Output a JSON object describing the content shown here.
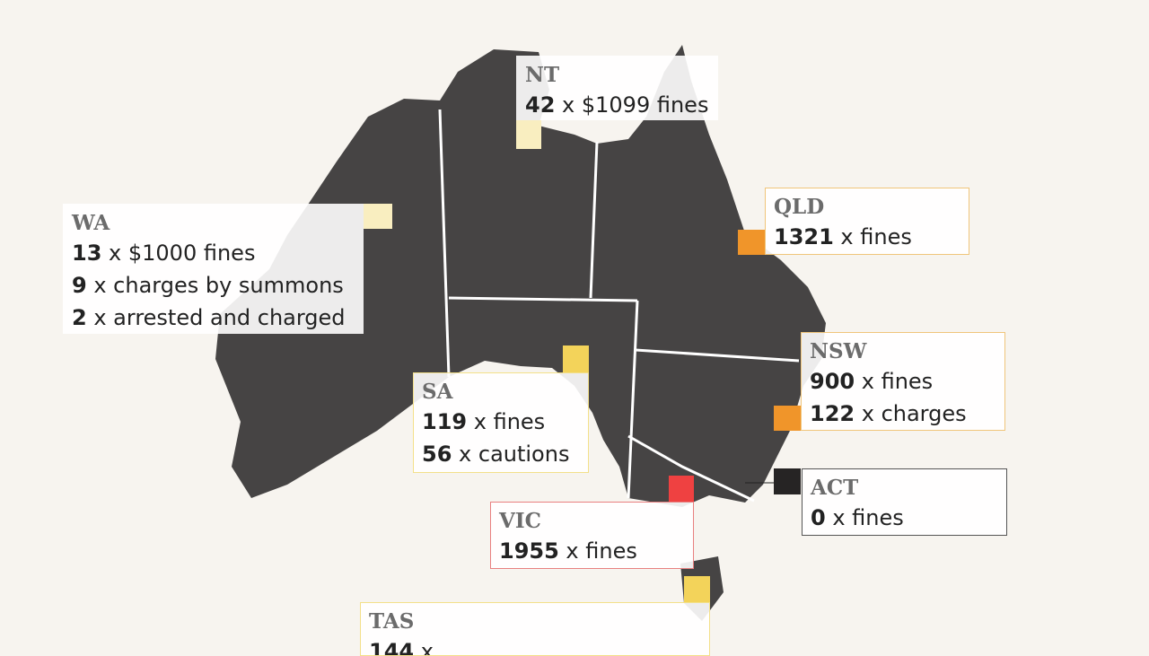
{
  "colors": {
    "background": "#f7f4ef",
    "land": "#464444",
    "border": "#ffffff"
  },
  "states": [
    {
      "id": "nt",
      "name": "NT",
      "color": "#f9eec0",
      "lines": [
        {
          "n": "42",
          "t": " x $1099 fines"
        }
      ]
    },
    {
      "id": "wa",
      "name": "WA",
      "color": "#f9eec0",
      "lines": [
        {
          "n": "13",
          "t": " x $1000 fines"
        },
        {
          "n": "9",
          "t": " x charges by summons"
        },
        {
          "n": "2",
          "t": " x arrested and charged"
        }
      ]
    },
    {
      "id": "qld",
      "name": "QLD",
      "color": "#f0952a",
      "lines": [
        {
          "n": "1321",
          "t": " x fines"
        }
      ]
    },
    {
      "id": "nsw",
      "name": "NSW",
      "color": "#f0952a",
      "lines": [
        {
          "n": "900",
          "t": " x fines"
        },
        {
          "n": "122",
          "t": " x charges"
        }
      ]
    },
    {
      "id": "sa",
      "name": "SA",
      "color": "#f3d35a",
      "lines": [
        {
          "n": "119",
          "t": " x fines"
        },
        {
          "n": "56",
          "t": " x cautions"
        }
      ]
    },
    {
      "id": "vic",
      "name": "VIC",
      "color": "#ef4141",
      "lines": [
        {
          "n": "1955",
          "t": " x fines"
        }
      ]
    },
    {
      "id": "act",
      "name": "ACT",
      "color": "#262424",
      "lines": [
        {
          "n": "0",
          "t": " x fines"
        }
      ]
    },
    {
      "id": "tas",
      "name": "TAS",
      "color": "#f3d35a",
      "lines": [
        {
          "n": "144",
          "t": " x"
        }
      ]
    }
  ]
}
